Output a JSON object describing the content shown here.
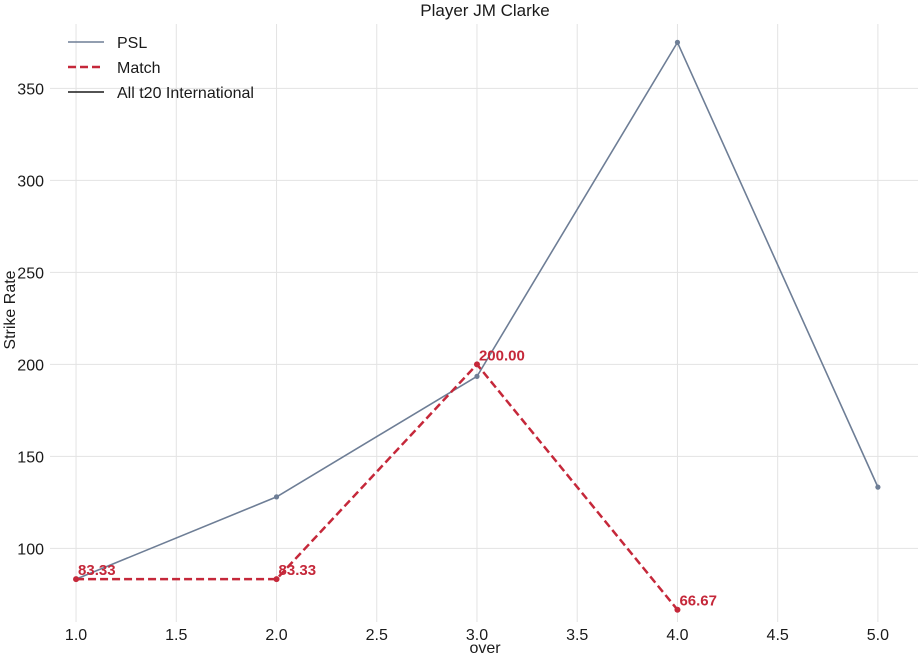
{
  "chart_data": {
    "type": "line",
    "title": "Player JM Clarke",
    "xlabel": "over",
    "ylabel": "Strike Rate",
    "xlim": [
      0.87,
      5.2
    ],
    "ylim": [
      60,
      385
    ],
    "xticks": [
      1.0,
      1.5,
      2.0,
      2.5,
      3.0,
      3.5,
      4.0,
      4.5,
      5.0
    ],
    "xtick_labels": [
      "1.0",
      "1.5",
      "2.0",
      "2.5",
      "3.0",
      "3.5",
      "4.0",
      "4.5",
      "5.0"
    ],
    "yticks": [
      100,
      150,
      200,
      250,
      300,
      350
    ],
    "ytick_labels": [
      "100",
      "150",
      "200",
      "250",
      "300",
      "350"
    ],
    "grid": true,
    "legend_position": "top-left",
    "series": [
      {
        "name": "PSL",
        "color": "#6e7e96",
        "style": "solid",
        "marker": true,
        "x": [
          1.0,
          2.0,
          3.0,
          4.0,
          5.0
        ],
        "y": [
          83.33,
          128,
          193.5,
          375,
          133.3
        ],
        "labels": []
      },
      {
        "name": "Match",
        "color": "#c5283a",
        "style": "dashed",
        "marker": true,
        "x": [
          1.0,
          2.0,
          3.0,
          4.0
        ],
        "y": [
          83.33,
          83.33,
          200.0,
          66.67
        ],
        "labels": [
          "83.33",
          "83.33",
          "200.00",
          "66.67"
        ]
      },
      {
        "name": "All t20 International",
        "color": "#1a1a1a",
        "style": "solid",
        "marker": false,
        "x": [],
        "y": [],
        "labels": []
      }
    ]
  }
}
